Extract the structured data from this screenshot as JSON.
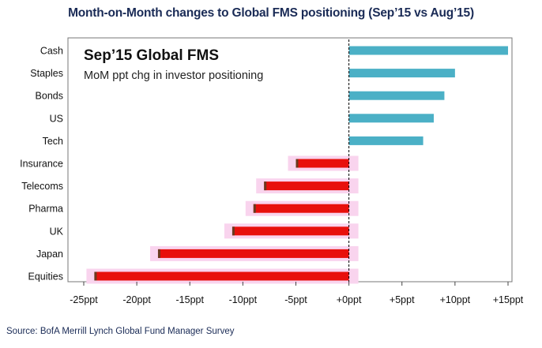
{
  "title": "Month-on-Month changes to Global FMS positioning (Sep’15 vs Aug’15)",
  "source": "Source: BofA Merrill Lynch Global Fund Manager Survey",
  "colors": {
    "positive": "#4bb0c6",
    "negative": "#e8100c",
    "negative_border": "#6b3a1e",
    "glow": "#f9d4ee"
  },
  "chart_data": {
    "type": "bar",
    "orientation": "horizontal",
    "title": "Sep’15 Global FMS",
    "subtitle": "MoM ppt chg in investor positioning",
    "categories": [
      "Cash",
      "Staples",
      "Bonds",
      "US",
      "Tech",
      "Insurance",
      "Telecoms",
      "Pharma",
      "UK",
      "Japan",
      "Equities"
    ],
    "values": [
      15,
      10,
      9,
      8,
      7,
      -5,
      -8,
      -9,
      -11,
      -18,
      -24
    ],
    "xlim": [
      -25,
      15
    ],
    "xticks": [
      -25,
      -20,
      -15,
      -10,
      -5,
      0,
      5,
      10,
      15
    ],
    "xtick_labels": [
      "-25ppt",
      "-20ppt",
      "-15ppt",
      "-10ppt",
      "-5ppt",
      "+0ppt",
      "+5ppt",
      "+10ppt",
      "+15ppt"
    ],
    "grid": false,
    "xlabel": "",
    "ylabel": ""
  }
}
